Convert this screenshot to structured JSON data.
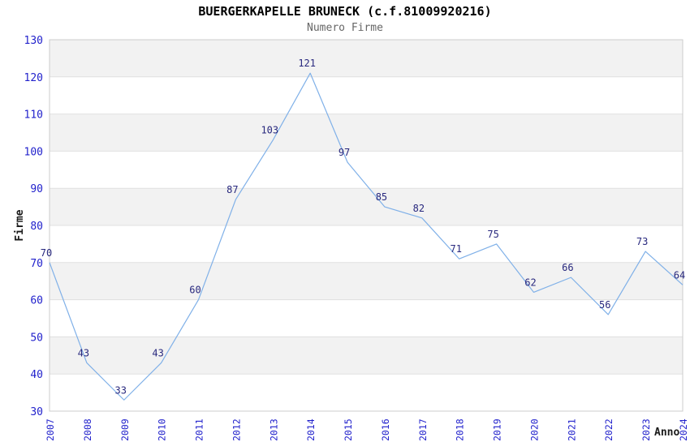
{
  "chart_data": {
    "type": "line",
    "title": "BUERGERKAPELLE BRUNECK (c.f.81009920216)",
    "subtitle": "Numero Firme",
    "xlabel": "Anno",
    "ylabel": "Firme",
    "categories": [
      "2007",
      "2008",
      "2009",
      "2010",
      "2011",
      "2012",
      "2013",
      "2014",
      "2015",
      "2016",
      "2017",
      "2018",
      "2019",
      "2020",
      "2021",
      "2022",
      "2023",
      "2024"
    ],
    "values": [
      70,
      43,
      33,
      43,
      60,
      87,
      103,
      121,
      97,
      85,
      82,
      71,
      75,
      62,
      66,
      56,
      73,
      64
    ],
    "ylim": [
      30,
      130
    ],
    "ytick_step": 10,
    "legend": "none",
    "grid": "horizontal-bands-alternating",
    "colors": {
      "line": "#7fb0e8",
      "tick_label": "#2222cc",
      "data_label": "#28287e",
      "band_fill": "#f2f2f2",
      "grid_line": "#e0e0e0",
      "plot_border": "#cccccc",
      "title": "#000000",
      "subtitle": "#666666",
      "axis_label": "#1a1a1a"
    }
  }
}
